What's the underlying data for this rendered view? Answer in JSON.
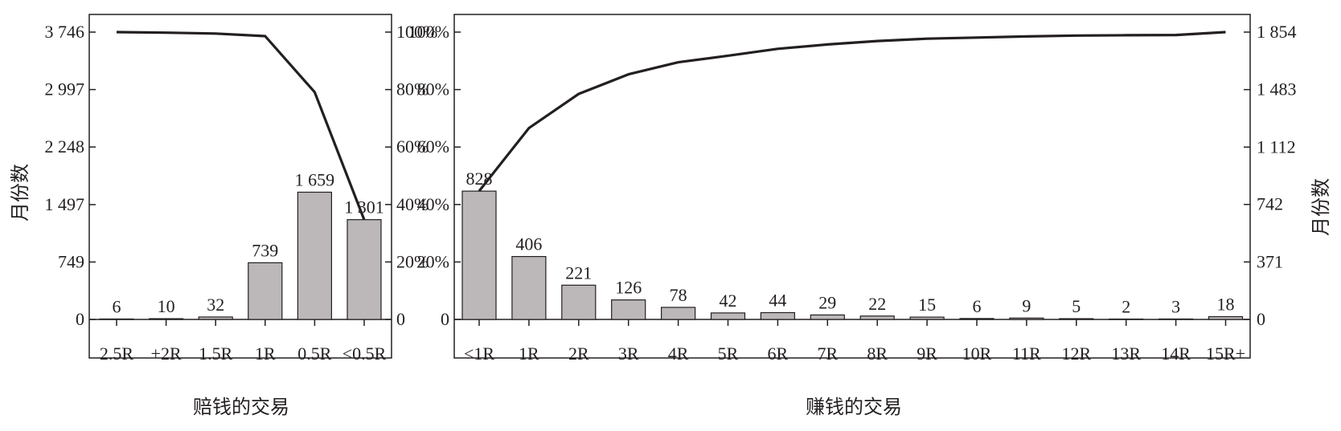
{
  "chart_data": [
    {
      "type": "bar",
      "xlabel": "赔钱的交易",
      "ylabel": "月份数",
      "categories": [
        "2.5R",
        "+2R",
        "1.5R",
        "1R",
        "0.5R",
        "<0.5R"
      ],
      "values": [
        6,
        10,
        32,
        739,
        1659,
        1301
      ],
      "value_labels": [
        "6",
        "10",
        "32",
        "739",
        "1 659",
        "1 301"
      ],
      "ylim": [
        0,
        3746
      ],
      "yticks": [
        0,
        749,
        1497,
        2248,
        2997,
        3746
      ],
      "ytick_labels": [
        "0",
        "749",
        "1 497",
        "2 248",
        "2 997",
        "3 746"
      ],
      "y2lim": [
        0,
        100
      ],
      "y2ticks": [
        0,
        20,
        40,
        60,
        80,
        100
      ],
      "y2tick_labels": [
        "0",
        "20%",
        "40%",
        "60%",
        "80%",
        "100%"
      ],
      "cumulative_percent": [
        100,
        99.8,
        99.5,
        98.6,
        79.1,
        34.7
      ],
      "bar_color": "#bcb8b9",
      "line_color": "#231f20"
    },
    {
      "type": "bar",
      "xlabel": "赚钱的交易",
      "ylabel": "月份数",
      "categories": [
        "<1R",
        "1R",
        "2R",
        "3R",
        "4R",
        "5R",
        "6R",
        "7R",
        "8R",
        "9R",
        "10R",
        "11R",
        "12R",
        "13R",
        "14R",
        "15R+"
      ],
      "values": [
        828,
        406,
        221,
        126,
        78,
        42,
        44,
        29,
        22,
        15,
        6,
        9,
        5,
        2,
        3,
        18
      ],
      "value_labels": [
        "828",
        "406",
        "221",
        "126",
        "78",
        "42",
        "44",
        "29",
        "22",
        "15",
        "6",
        "9",
        "5",
        "2",
        "3",
        "18"
      ],
      "ylim": [
        0,
        1854
      ],
      "yticks": [
        0,
        371,
        742,
        1112,
        1483,
        1854
      ],
      "ytick_labels": [
        "0",
        "371",
        "742",
        "1 112",
        "1 483",
        "1 854"
      ],
      "y1lim": [
        0,
        100
      ],
      "y1ticks": [
        0,
        20,
        40,
        60,
        80,
        100
      ],
      "y1tick_labels": [
        "0",
        "20%",
        "40%",
        "60%",
        "80%",
        "100%"
      ],
      "cumulative_percent": [
        44.7,
        66.6,
        78.5,
        85.3,
        89.5,
        91.8,
        94.2,
        95.7,
        96.9,
        97.7,
        98.1,
        98.5,
        98.8,
        98.9,
        99.0,
        100
      ],
      "bar_color": "#bcb8b9",
      "line_color": "#231f20"
    }
  ]
}
